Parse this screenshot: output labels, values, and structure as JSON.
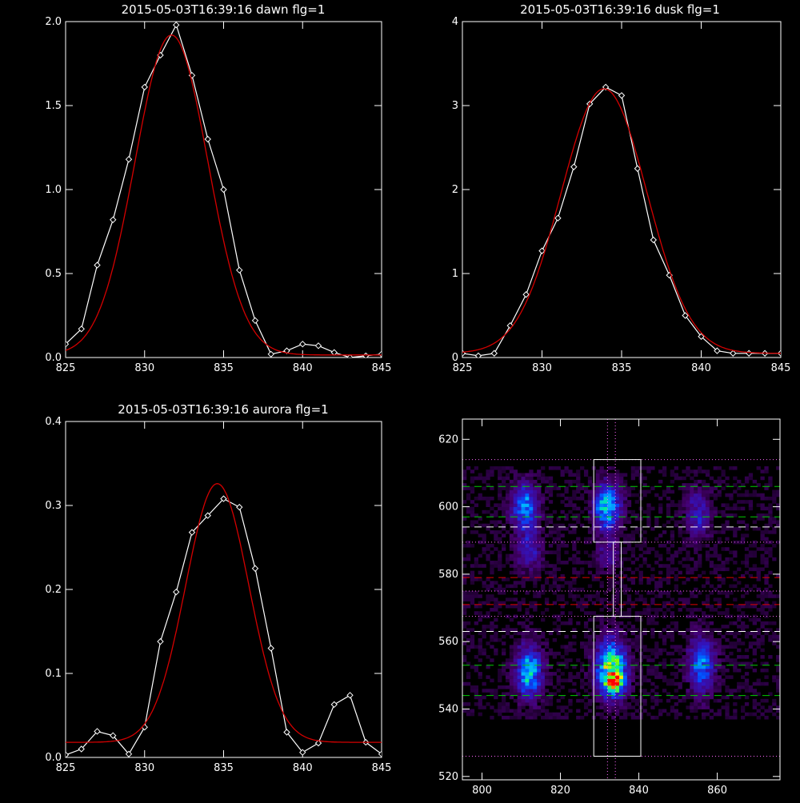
{
  "chart_data": [
    {
      "type": "line",
      "title": "2015-05-03T16:39:16 dawn flg=1",
      "xlim": [
        825,
        845
      ],
      "ylim": [
        0,
        2.0
      ],
      "xticks": [
        "825",
        "830",
        "835",
        "840",
        "845"
      ],
      "yticks": [
        "0.0",
        "0.5",
        "1.0",
        "1.5",
        "2.0"
      ],
      "xtick_values": [
        825,
        830,
        835,
        840,
        845
      ],
      "ytick_values": [
        0,
        0.5,
        1.0,
        1.5,
        2.0
      ],
      "grid": false,
      "series": [
        {
          "color": "#ffffff",
          "marker": "diamond",
          "x": [
            825,
            826,
            827,
            828,
            829,
            830,
            831,
            832,
            833,
            834,
            835,
            836,
            837,
            838,
            839,
            840,
            841,
            842,
            843,
            844,
            845
          ],
          "y": [
            0.08,
            0.17,
            0.55,
            0.82,
            1.18,
            1.61,
            1.8,
            1.98,
            1.68,
            1.3,
            1.0,
            0.52,
            0.22,
            0.02,
            0.04,
            0.08,
            0.07,
            0.03,
            0.0,
            0.01,
            0.02
          ]
        },
        {
          "color": "#d40000",
          "fit": "gaussian",
          "params": {
            "amplitude": 1.905,
            "center": 831.7,
            "sigma": 2.3,
            "offset": 0.015
          }
        }
      ]
    },
    {
      "type": "line",
      "title": "2015-05-03T16:39:16 dusk flg=1",
      "xlim": [
        825,
        845
      ],
      "ylim": [
        0,
        4
      ],
      "xticks": [
        "825",
        "830",
        "835",
        "840",
        "845"
      ],
      "yticks": [
        "0",
        "1",
        "2",
        "3",
        "4"
      ],
      "xtick_values": [
        825,
        830,
        835,
        840,
        845
      ],
      "ytick_values": [
        0,
        1,
        2,
        3,
        4
      ],
      "grid": false,
      "series": [
        {
          "color": "#ffffff",
          "marker": "diamond",
          "x": [
            825,
            826,
            827,
            828,
            829,
            830,
            831,
            832,
            833,
            834,
            835,
            836,
            837,
            838,
            839,
            840,
            841,
            842,
            843,
            844,
            845
          ],
          "y": [
            0.05,
            0.02,
            0.05,
            0.38,
            0.75,
            1.27,
            1.66,
            2.27,
            3.02,
            3.22,
            3.12,
            2.25,
            1.4,
            0.98,
            0.5,
            0.25,
            0.08,
            0.05,
            0.05,
            0.05,
            0.05
          ]
        },
        {
          "color": "#d40000",
          "fit": "gaussian",
          "params": {
            "amplitude": 3.15,
            "center": 833.9,
            "sigma": 2.7,
            "offset": 0.05
          }
        }
      ]
    },
    {
      "type": "line",
      "title": "2015-05-03T16:39:16 aurora flg=1",
      "xlim": [
        825,
        845
      ],
      "ylim": [
        0,
        0.4
      ],
      "xticks": [
        "825",
        "830",
        "835",
        "840",
        "845"
      ],
      "yticks": [
        "0.0",
        "0.1",
        "0.2",
        "0.3",
        "0.4"
      ],
      "xtick_values": [
        825,
        830,
        835,
        840,
        845
      ],
      "ytick_values": [
        0,
        0.1,
        0.2,
        0.3,
        0.4
      ],
      "grid": false,
      "series": [
        {
          "color": "#ffffff",
          "marker": "diamond",
          "x": [
            825,
            826,
            827,
            828,
            829,
            830,
            831,
            832,
            833,
            834,
            835,
            836,
            837,
            838,
            839,
            840,
            841,
            842,
            843,
            844,
            845
          ],
          "y": [
            0.003,
            0.01,
            0.031,
            0.026,
            0.004,
            0.036,
            0.138,
            0.197,
            0.268,
            0.288,
            0.308,
            0.298,
            0.225,
            0.13,
            0.03,
            0.006,
            0.017,
            0.063,
            0.074,
            0.018,
            0.004
          ]
        },
        {
          "color": "#d40000",
          "fit": "gaussian",
          "params": {
            "amplitude": 0.308,
            "center": 834.6,
            "sigma": 2.0,
            "offset": 0.018
          }
        }
      ]
    },
    {
      "type": "heatmap",
      "title": "",
      "xlim": [
        795,
        876
      ],
      "ylim": [
        519,
        626
      ],
      "xticks": [
        "800",
        "820",
        "840",
        "860"
      ],
      "yticks": [
        "520",
        "540",
        "560",
        "580",
        "600",
        "620"
      ],
      "xtick_values": [
        800,
        820,
        840,
        860
      ],
      "ytick_values": [
        520,
        540,
        560,
        580,
        600,
        620
      ],
      "colormap": "rainbow",
      "blobs": [
        {
          "x": 811,
          "y": 600,
          "sx": 2.2,
          "sy": 4.5,
          "amp": 0.45
        },
        {
          "x": 812,
          "y": 587,
          "sx": 2.2,
          "sy": 4.0,
          "amp": 0.22
        },
        {
          "x": 832,
          "y": 600,
          "sx": 2.2,
          "sy": 4.5,
          "amp": 0.55
        },
        {
          "x": 832,
          "y": 586,
          "sx": 2.2,
          "sy": 3.5,
          "amp": 0.15
        },
        {
          "x": 855,
          "y": 598,
          "sx": 2.2,
          "sy": 5.0,
          "amp": 0.22
        },
        {
          "x": 812,
          "y": 551,
          "sx": 2.2,
          "sy": 5.0,
          "amp": 0.55
        },
        {
          "x": 833,
          "y": 552,
          "sx": 2.5,
          "sy": 5.5,
          "amp": 0.72
        },
        {
          "x": 834,
          "y": 548,
          "sx": 1.5,
          "sy": 2.0,
          "amp": 0.55
        },
        {
          "x": 856,
          "y": 553,
          "sx": 2.2,
          "sy": 5.5,
          "amp": 0.4
        }
      ],
      "boxes": [
        {
          "x": [
            828.5,
            840.5
          ],
          "y": [
            589.5,
            614
          ]
        },
        {
          "x": [
            828.5,
            840.5
          ],
          "y": [
            526,
            567.5
          ]
        },
        {
          "x": [
            833.5,
            835.5
          ],
          "y": [
            567.5,
            589.5
          ]
        }
      ],
      "hlines": [
        {
          "y": 614,
          "color": "#ff66ff",
          "style": "dotted"
        },
        {
          "y": 606,
          "color": "#00cc00",
          "style": "dashed"
        },
        {
          "y": 597,
          "color": "#00cc00",
          "style": "dashed"
        },
        {
          "y": 594,
          "color": "#ffffff",
          "style": "dashed"
        },
        {
          "y": 589.5,
          "color": "#ff66ff",
          "style": "dotted"
        },
        {
          "y": 579,
          "color": "#e00000",
          "style": "dashed"
        },
        {
          "y": 575,
          "color": "#ff66ff",
          "style": "dotted"
        },
        {
          "y": 571,
          "color": "#e00000",
          "style": "dashed"
        },
        {
          "y": 567.5,
          "color": "#ff66ff",
          "style": "dotted"
        },
        {
          "y": 563,
          "color": "#ffffff",
          "style": "dashed"
        },
        {
          "y": 553,
          "color": "#00cc00",
          "style": "dashed"
        },
        {
          "y": 544,
          "color": "#00cc00",
          "style": "dashed"
        },
        {
          "y": 526,
          "color": "#ff66ff",
          "style": "dotted"
        }
      ],
      "vlines": [
        {
          "x": 832,
          "color": "#ff66ff",
          "style": "dotted"
        },
        {
          "x": 834,
          "color": "#ff66ff",
          "style": "dotted"
        }
      ]
    }
  ]
}
